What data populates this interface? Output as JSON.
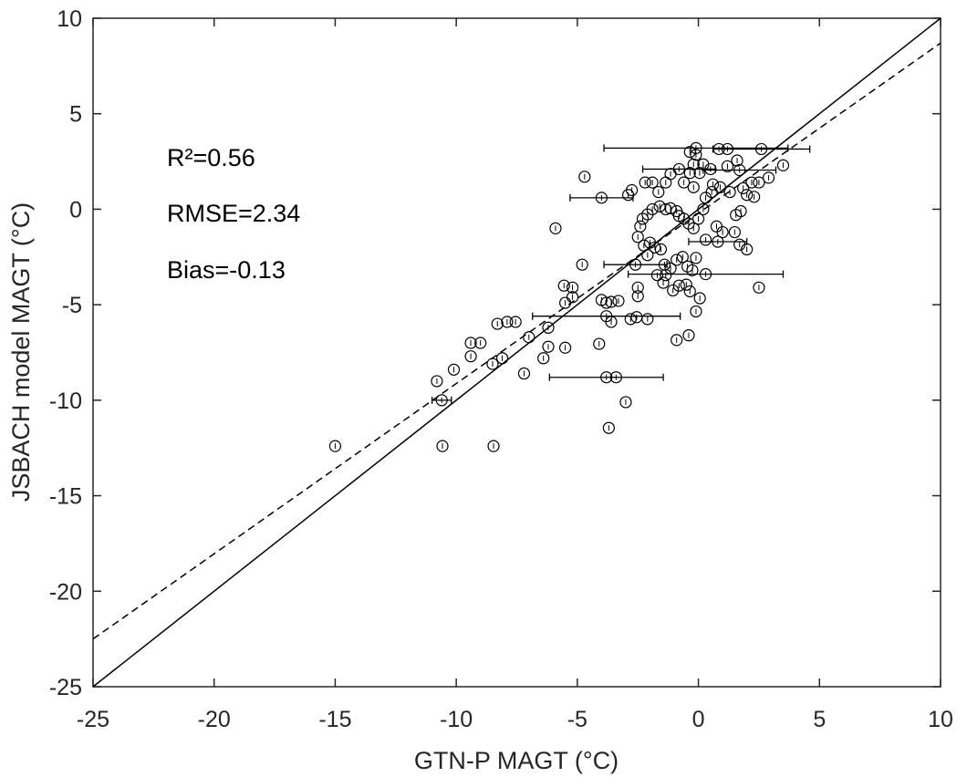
{
  "chart_data": {
    "type": "scatter",
    "xlabel": "GTN-P MAGT (°C)",
    "ylabel": "JSBACH model MAGT (°C)",
    "annotations": [
      "R²=0.56",
      "RMSE=2.34",
      "Bias=-0.13"
    ],
    "xlim": [
      -25,
      10
    ],
    "ylim": [
      -25,
      10
    ],
    "xticks": [
      -25,
      -20,
      -15,
      -10,
      -5,
      0,
      5,
      10
    ],
    "yticks": [
      -25,
      -20,
      -15,
      -10,
      -5,
      0,
      5,
      10
    ],
    "color": "#000000",
    "x": [
      -15.0,
      -10.57,
      -8.46,
      -10.8,
      -10.6,
      -10.1,
      -9.4,
      -9.0,
      -9.4,
      -8.5,
      -8.1,
      -8.3,
      -7.9,
      -7.55,
      -7.2,
      -7.0,
      -6.2,
      -6.2,
      -6.4,
      -5.9,
      -4.7,
      -4.8,
      -5.55,
      -5.2,
      -5.2,
      -5.5,
      -5.5,
      -4.1,
      -4.0,
      -3.8,
      -3.6,
      -3.3,
      -3.6,
      -3.8,
      -3.8,
      -3.4,
      -3.7,
      -3.0,
      -2.6,
      -2.8,
      -2.55,
      -2.1,
      -2.5,
      -4.0,
      -2.9,
      -2.75,
      -2.2,
      -1.9,
      -0.9,
      -0.4,
      -0.1,
      0.06,
      0.3,
      2.5,
      3.5,
      2.9,
      2.5,
      1.5,
      2.0,
      1.7,
      -0.1,
      0.85,
      1.2,
      1.6,
      2.6,
      -2.5,
      -2.3,
      -2.1,
      -1.9,
      -1.6,
      -1.35,
      -1.15,
      -0.9,
      -0.8,
      -0.6,
      -0.4,
      -0.2,
      0.0,
      0.2,
      0.3,
      0.55,
      0.9,
      1.3,
      1.85,
      2.3,
      -2.4,
      -2.25,
      -2.0,
      -1.8,
      -1.55,
      -1.4,
      -1.15,
      -0.9,
      -0.65,
      -0.45,
      -0.25,
      -0.1,
      -1.05,
      -0.8,
      -0.5,
      -0.35,
      -1.35,
      -1.7,
      -1.45,
      -2.5,
      -2.1,
      -0.35,
      -0.2,
      -0.1,
      -0.35,
      0.05,
      -0.8,
      -1.15,
      -1.35,
      -1.65,
      -0.6,
      -0.2,
      0.2,
      1.2,
      0.6,
      0.75,
      1.0,
      0.8,
      0.3,
      1.55,
      1.75,
      2.0,
      2.2,
      1.7,
      0.5
    ],
    "values": [
      -12.4,
      -12.4,
      -12.4,
      -9.0,
      -10.0,
      -8.4,
      -7.0,
      -7.0,
      -7.7,
      -8.1,
      -7.8,
      -6.0,
      -5.9,
      -5.9,
      -8.6,
      -6.7,
      -6.2,
      -7.2,
      -7.8,
      -1.0,
      1.7,
      -2.9,
      -4.0,
      -4.1,
      -4.6,
      -4.9,
      -7.25,
      -7.05,
      -4.75,
      -4.9,
      -4.85,
      -4.8,
      -5.9,
      -5.6,
      -8.8,
      -8.8,
      -11.45,
      -10.1,
      -2.9,
      -5.75,
      -5.65,
      -5.75,
      -4.55,
      0.6,
      0.75,
      1.0,
      1.4,
      1.4,
      -6.85,
      -6.6,
      -5.35,
      -4.66,
      -3.4,
      -4.1,
      2.3,
      1.65,
      1.4,
      -1.2,
      -2.1,
      -1.85,
      3.2,
      3.15,
      3.15,
      2.55,
      3.15,
      -1.45,
      -0.5,
      -0.27,
      0.0,
      0.15,
      0.0,
      0.05,
      -0.1,
      -0.35,
      -0.5,
      -0.75,
      -1.0,
      -0.5,
      0.0,
      0.6,
      0.9,
      1.15,
      0.9,
      1.1,
      0.65,
      -0.9,
      -1.9,
      -1.75,
      -2.0,
      -2.1,
      -2.9,
      -3.1,
      -2.65,
      -2.5,
      -3.0,
      -3.2,
      -2.55,
      -4.25,
      -4.0,
      -3.95,
      -4.3,
      -3.45,
      -3.45,
      -3.85,
      -4.1,
      -2.4,
      1.9,
      2.35,
      2.85,
      3.0,
      1.9,
      2.1,
      1.85,
      1.4,
      0.9,
      1.4,
      1.15,
      2.35,
      2.25,
      1.3,
      -0.9,
      -1.2,
      -1.7,
      -1.6,
      -0.3,
      -0.1,
      0.75,
      1.4,
      2.05,
      2.1
    ],
    "xerr": [
      null,
      null,
      null,
      null,
      0.4,
      null,
      null,
      null,
      null,
      null,
      null,
      null,
      null,
      null,
      null,
      null,
      null,
      null,
      null,
      null,
      null,
      null,
      null,
      null,
      null,
      null,
      null,
      null,
      null,
      null,
      null,
      null,
      null,
      3.05,
      2.35,
      null,
      null,
      null,
      1.3,
      null,
      null,
      null,
      null,
      1.3,
      null,
      null,
      null,
      null,
      null,
      null,
      null,
      null,
      3.2,
      null,
      null,
      null,
      null,
      null,
      null,
      null,
      3.8,
      null,
      null,
      null,
      2.0,
      null,
      null,
      null,
      null,
      null,
      null,
      null,
      null,
      null,
      null,
      null,
      null,
      null,
      null,
      null,
      null,
      null,
      null,
      null,
      null,
      null,
      null,
      null,
      null,
      null,
      null,
      null,
      null,
      null,
      null,
      null,
      null,
      null,
      null,
      null,
      null,
      null,
      null,
      null,
      null,
      null,
      null,
      null,
      null,
      null,
      null,
      1.5,
      null,
      null,
      null,
      null,
      null,
      null,
      null,
      null,
      null,
      null,
      1.2,
      null,
      null,
      null,
      null,
      null,
      1.5,
      null
    ],
    "reference_lines": [
      {
        "x": [
          -25,
          10
        ],
        "y": [
          -25,
          10
        ],
        "style": "solid"
      },
      {
        "x": [
          -25,
          10
        ],
        "y": [
          -22.5,
          8.7
        ],
        "style": "dashed"
      }
    ]
  }
}
